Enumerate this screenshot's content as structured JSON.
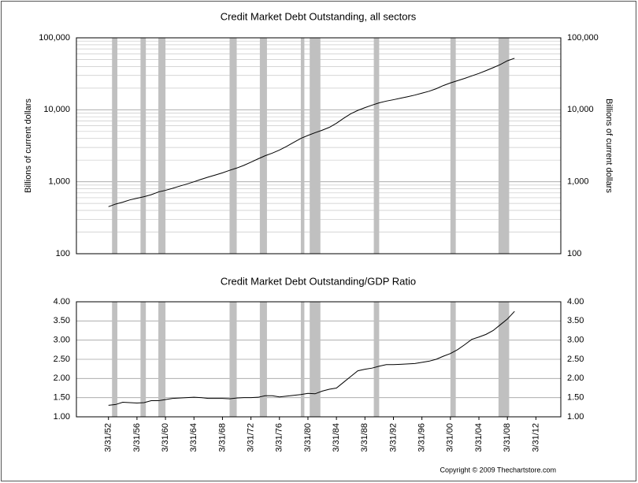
{
  "chart_data": [
    {
      "type": "line",
      "title": "Credit Market Debt Outstanding, all sectors",
      "ylabel": "Billions of current dollars",
      "y2label": "Billions of current dollars",
      "log_scale": true,
      "grid": true,
      "minor_grid": true,
      "color": "#000000",
      "shade_color": "#c0c0c0",
      "xlim": [
        "9/30/47",
        "9/30/15"
      ],
      "ylim": [
        100,
        100000
      ],
      "yticks": [
        100,
        {
          "value": 1000,
          "label": "1,000"
        },
        {
          "value": 10000,
          "label": "10,000"
        },
        {
          "value": 100000,
          "label": "100,000"
        }
      ],
      "shaded_periods": [
        [
          "9/30/52",
          "6/30/53"
        ],
        [
          "9/30/56",
          "6/30/57"
        ],
        [
          "3/31/59",
          "3/31/60"
        ],
        [
          "3/31/69",
          "3/31/70"
        ],
        [
          "6/30/73",
          "6/30/74"
        ],
        [
          "3/31/79",
          "9/30/79"
        ],
        [
          "6/30/80",
          "12/31/81"
        ],
        [
          "6/30/89",
          "3/31/90"
        ],
        [
          "3/31/00",
          "12/31/00"
        ],
        [
          "12/31/06",
          "6/30/08"
        ]
      ],
      "x": [
        "3/31/52",
        "3/31/53",
        "3/31/54",
        "3/31/55",
        "3/31/56",
        "3/31/57",
        "3/31/58",
        "3/31/59",
        "3/31/60",
        "3/31/61",
        "3/31/62",
        "3/31/63",
        "3/31/64",
        "3/31/65",
        "3/31/66",
        "3/31/67",
        "3/31/68",
        "3/31/69",
        "3/31/70",
        "3/31/71",
        "3/31/72",
        "3/31/73",
        "3/31/74",
        "3/31/75",
        "3/31/76",
        "3/31/77",
        "3/31/78",
        "3/31/79",
        "3/31/80",
        "3/31/81",
        "3/31/82",
        "3/31/83",
        "3/31/84",
        "3/31/85",
        "3/31/86",
        "3/31/87",
        "3/31/88",
        "3/31/89",
        "3/31/90",
        "3/31/91",
        "3/31/92",
        "3/31/93",
        "3/31/94",
        "3/31/95",
        "3/31/96",
        "3/31/97",
        "3/31/98",
        "3/31/99",
        "3/31/00",
        "3/31/01",
        "3/31/02",
        "3/31/03",
        "3/31/04",
        "3/31/05",
        "3/31/06",
        "3/31/07",
        "3/31/08",
        "3/31/09"
      ],
      "values": [
        450,
        490,
        520,
        560,
        590,
        620,
        660,
        720,
        760,
        810,
        870,
        930,
        1000,
        1080,
        1160,
        1240,
        1330,
        1440,
        1550,
        1690,
        1870,
        2080,
        2300,
        2500,
        2760,
        3100,
        3530,
        4000,
        4400,
        4800,
        5200,
        5700,
        6500,
        7600,
        8800,
        9800,
        10700,
        11600,
        12500,
        13200,
        13800,
        14500,
        15200,
        16000,
        17000,
        18100,
        19600,
        21700,
        23600,
        25400,
        27300,
        29600,
        32000,
        35000,
        38500,
        42500,
        48000,
        52000
      ]
    },
    {
      "type": "line",
      "title": "Credit Market Debt Outstanding/GDP Ratio",
      "log_scale": false,
      "grid": true,
      "color": "#000000",
      "shade_color": "#c0c0c0",
      "xlim": [
        "9/30/47",
        "9/30/15"
      ],
      "xticks": [
        "3/31/52",
        "3/31/56",
        "3/31/60",
        "3/31/64",
        "3/31/68",
        "3/31/72",
        "3/31/76",
        "3/31/80",
        "3/31/84",
        "3/31/88",
        "3/31/92",
        "3/31/96",
        "3/31/00",
        "3/31/04",
        "3/31/08",
        "3/31/12"
      ],
      "ylim": [
        1,
        4
      ],
      "yticks": [
        {
          "value": 1,
          "label": "1.00"
        },
        {
          "value": 1.5,
          "label": "1.50"
        },
        {
          "value": 2,
          "label": "2.00"
        },
        {
          "value": 2.5,
          "label": "2.50"
        },
        {
          "value": 3,
          "label": "3.00"
        },
        {
          "value": 3.5,
          "label": "3.50"
        },
        {
          "value": 4,
          "label": "4.00"
        }
      ],
      "shaded_periods": [
        [
          "9/30/52",
          "6/30/53"
        ],
        [
          "9/30/56",
          "6/30/57"
        ],
        [
          "3/31/59",
          "3/31/60"
        ],
        [
          "3/31/69",
          "3/31/70"
        ],
        [
          "6/30/73",
          "6/30/74"
        ],
        [
          "3/31/79",
          "9/30/79"
        ],
        [
          "6/30/80",
          "12/31/81"
        ],
        [
          "6/30/89",
          "3/31/90"
        ],
        [
          "3/31/00",
          "12/31/00"
        ],
        [
          "12/31/06",
          "6/30/08"
        ]
      ],
      "x": [
        "3/31/52",
        "3/31/53",
        "3/31/54",
        "3/31/55",
        "3/31/56",
        "3/31/57",
        "3/31/58",
        "3/31/59",
        "3/31/60",
        "3/31/61",
        "3/31/62",
        "3/31/63",
        "3/31/64",
        "3/31/65",
        "3/31/66",
        "3/31/67",
        "3/31/68",
        "3/31/69",
        "3/31/70",
        "3/31/71",
        "3/31/72",
        "3/31/73",
        "3/31/74",
        "3/31/75",
        "3/31/76",
        "3/31/77",
        "3/31/78",
        "3/31/79",
        "3/31/80",
        "3/31/81",
        "3/31/82",
        "3/31/83",
        "3/31/84",
        "3/31/85",
        "3/31/86",
        "3/31/87",
        "3/31/88",
        "3/31/89",
        "3/31/90",
        "3/31/91",
        "3/31/92",
        "3/31/93",
        "3/31/94",
        "3/31/95",
        "3/31/96",
        "3/31/97",
        "3/31/98",
        "3/31/99",
        "3/31/00",
        "3/31/01",
        "3/31/02",
        "3/31/03",
        "3/31/04",
        "3/31/05",
        "3/31/06",
        "3/31/07",
        "3/31/08",
        "3/31/09"
      ],
      "values": [
        1.3,
        1.32,
        1.38,
        1.37,
        1.36,
        1.37,
        1.42,
        1.42,
        1.45,
        1.48,
        1.49,
        1.5,
        1.51,
        1.5,
        1.48,
        1.48,
        1.48,
        1.47,
        1.49,
        1.5,
        1.5,
        1.51,
        1.55,
        1.55,
        1.52,
        1.54,
        1.56,
        1.58,
        1.61,
        1.6,
        1.67,
        1.72,
        1.75,
        1.9,
        2.05,
        2.2,
        2.24,
        2.27,
        2.32,
        2.36,
        2.36,
        2.37,
        2.38,
        2.39,
        2.42,
        2.45,
        2.5,
        2.58,
        2.65,
        2.75,
        2.88,
        3.02,
        3.08,
        3.15,
        3.25,
        3.4,
        3.55,
        3.75
      ]
    }
  ],
  "copyright": "Copyright © 2009 Thechartstore.com"
}
